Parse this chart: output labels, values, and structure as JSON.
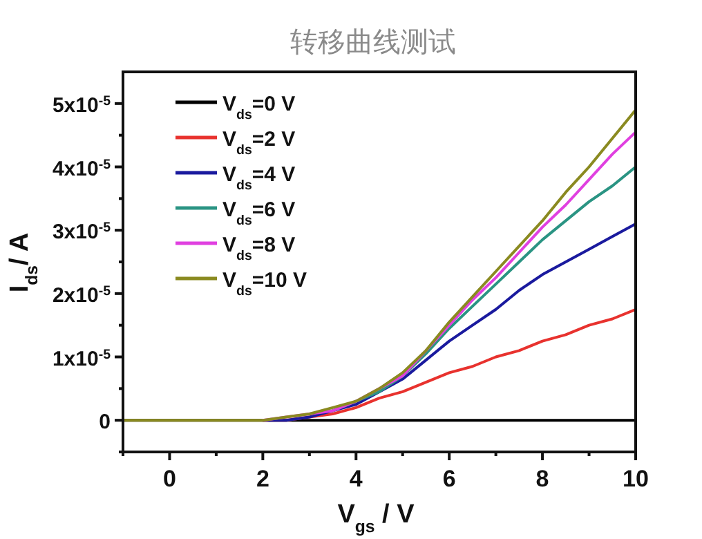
{
  "chart_data": {
    "type": "line",
    "title": "转移曲线测试",
    "xlabel": "V$_{gs}$ / V",
    "ylabel": "I$_{ds}$/ A",
    "x": [
      -1,
      0,
      1,
      1.5,
      2,
      2.5,
      3,
      3.5,
      4,
      4.5,
      5,
      5.5,
      6,
      6.5,
      7,
      7.5,
      8,
      8.5,
      9,
      9.5,
      10
    ],
    "series": [
      {
        "name": "V$_{ds}$=0 V",
        "color": "#000000",
        "values": [
          0,
          0,
          0,
          0,
          0,
          0,
          0,
          0,
          0,
          0,
          0,
          0,
          0,
          0,
          0,
          0,
          0,
          0,
          0,
          0,
          0
        ]
      },
      {
        "name": "V$_{ds}$=2 V",
        "color": "#e8322e",
        "values": [
          null,
          null,
          null,
          null,
          0,
          0,
          5e-07,
          1e-06,
          2e-06,
          3.5e-06,
          4.5e-06,
          6e-06,
          7.5e-06,
          8.5e-06,
          1e-05,
          1.1e-05,
          1.25e-05,
          1.35e-05,
          1.5e-05,
          1.6e-05,
          1.75e-05
        ]
      },
      {
        "name": "V$_{ds}$=4 V",
        "color": "#1a1a9e",
        "values": [
          null,
          null,
          null,
          null,
          0,
          0,
          5e-07,
          1.5e-06,
          2.5e-06,
          4.5e-06,
          6.5e-06,
          9.5e-06,
          1.25e-05,
          1.5e-05,
          1.75e-05,
          2.05e-05,
          2.3e-05,
          2.5e-05,
          2.7e-05,
          2.9e-05,
          3.1e-05
        ]
      },
      {
        "name": "V$_{ds}$=6 V",
        "color": "#2a9483",
        "values": [
          null,
          null,
          null,
          null,
          null,
          null,
          null,
          1.5e-06,
          3e-06,
          4.5e-06,
          7e-06,
          1.05e-05,
          1.45e-05,
          1.8e-05,
          2.15e-05,
          2.5e-05,
          2.85e-05,
          3.15e-05,
          3.45e-05,
          3.7e-05,
          4e-05
        ]
      },
      {
        "name": "V$_{ds}$=8 V",
        "color": "#e040e0",
        "values": [
          null,
          null,
          null,
          null,
          0,
          5e-07,
          1e-06,
          1.5e-06,
          3e-06,
          5e-06,
          7e-06,
          1.1e-05,
          1.5e-05,
          1.9e-05,
          2.25e-05,
          2.65e-05,
          3.05e-05,
          3.4e-05,
          3.8e-05,
          4.2e-05,
          4.55e-05
        ]
      },
      {
        "name": "V$_{ds}$=10 V",
        "color": "#8a8a20",
        "values": [
          0,
          0,
          0,
          0,
          0,
          5e-07,
          1e-06,
          2e-06,
          3e-06,
          5e-06,
          7.5e-06,
          1.1e-05,
          1.55e-05,
          1.95e-05,
          2.35e-05,
          2.75e-05,
          3.15e-05,
          3.6e-05,
          4e-05,
          4.45e-05,
          4.9e-05
        ]
      }
    ],
    "xlim": [
      -1,
      10
    ],
    "xticks": [
      {
        "value": -1,
        "label": null
      },
      0,
      {
        "value": 1,
        "label": null
      },
      2,
      {
        "value": 3,
        "label": null
      },
      4,
      {
        "value": 5,
        "label": null
      },
      6,
      {
        "value": 7,
        "label": null
      },
      8,
      {
        "value": 9,
        "label": null
      },
      10
    ],
    "ylim": [
      -5e-06,
      5.5e-05
    ],
    "yticks": [
      {
        "value": -5e-06,
        "label": null
      },
      {
        "value": 0,
        "label": "0"
      },
      {
        "value": 5e-06,
        "label": null
      },
      {
        "value": 1e-05,
        "label": "1x10$^{-5}$"
      },
      {
        "value": 1.5e-05,
        "label": null
      },
      {
        "value": 2e-05,
        "label": "2x10$^{-5}$"
      },
      {
        "value": 2.5e-05,
        "label": null
      },
      {
        "value": 3e-05,
        "label": "3x10$^{-5}$"
      },
      {
        "value": 3.5e-05,
        "label": null
      },
      {
        "value": 4e-05,
        "label": "4x10$^{-5}$"
      },
      {
        "value": 4.5e-05,
        "label": null
      },
      {
        "value": 5e-05,
        "label": "5x10$^{-5}$"
      }
    ],
    "legend": "top left",
    "grid": false,
    "marker": "none",
    "line_style": "solid"
  }
}
